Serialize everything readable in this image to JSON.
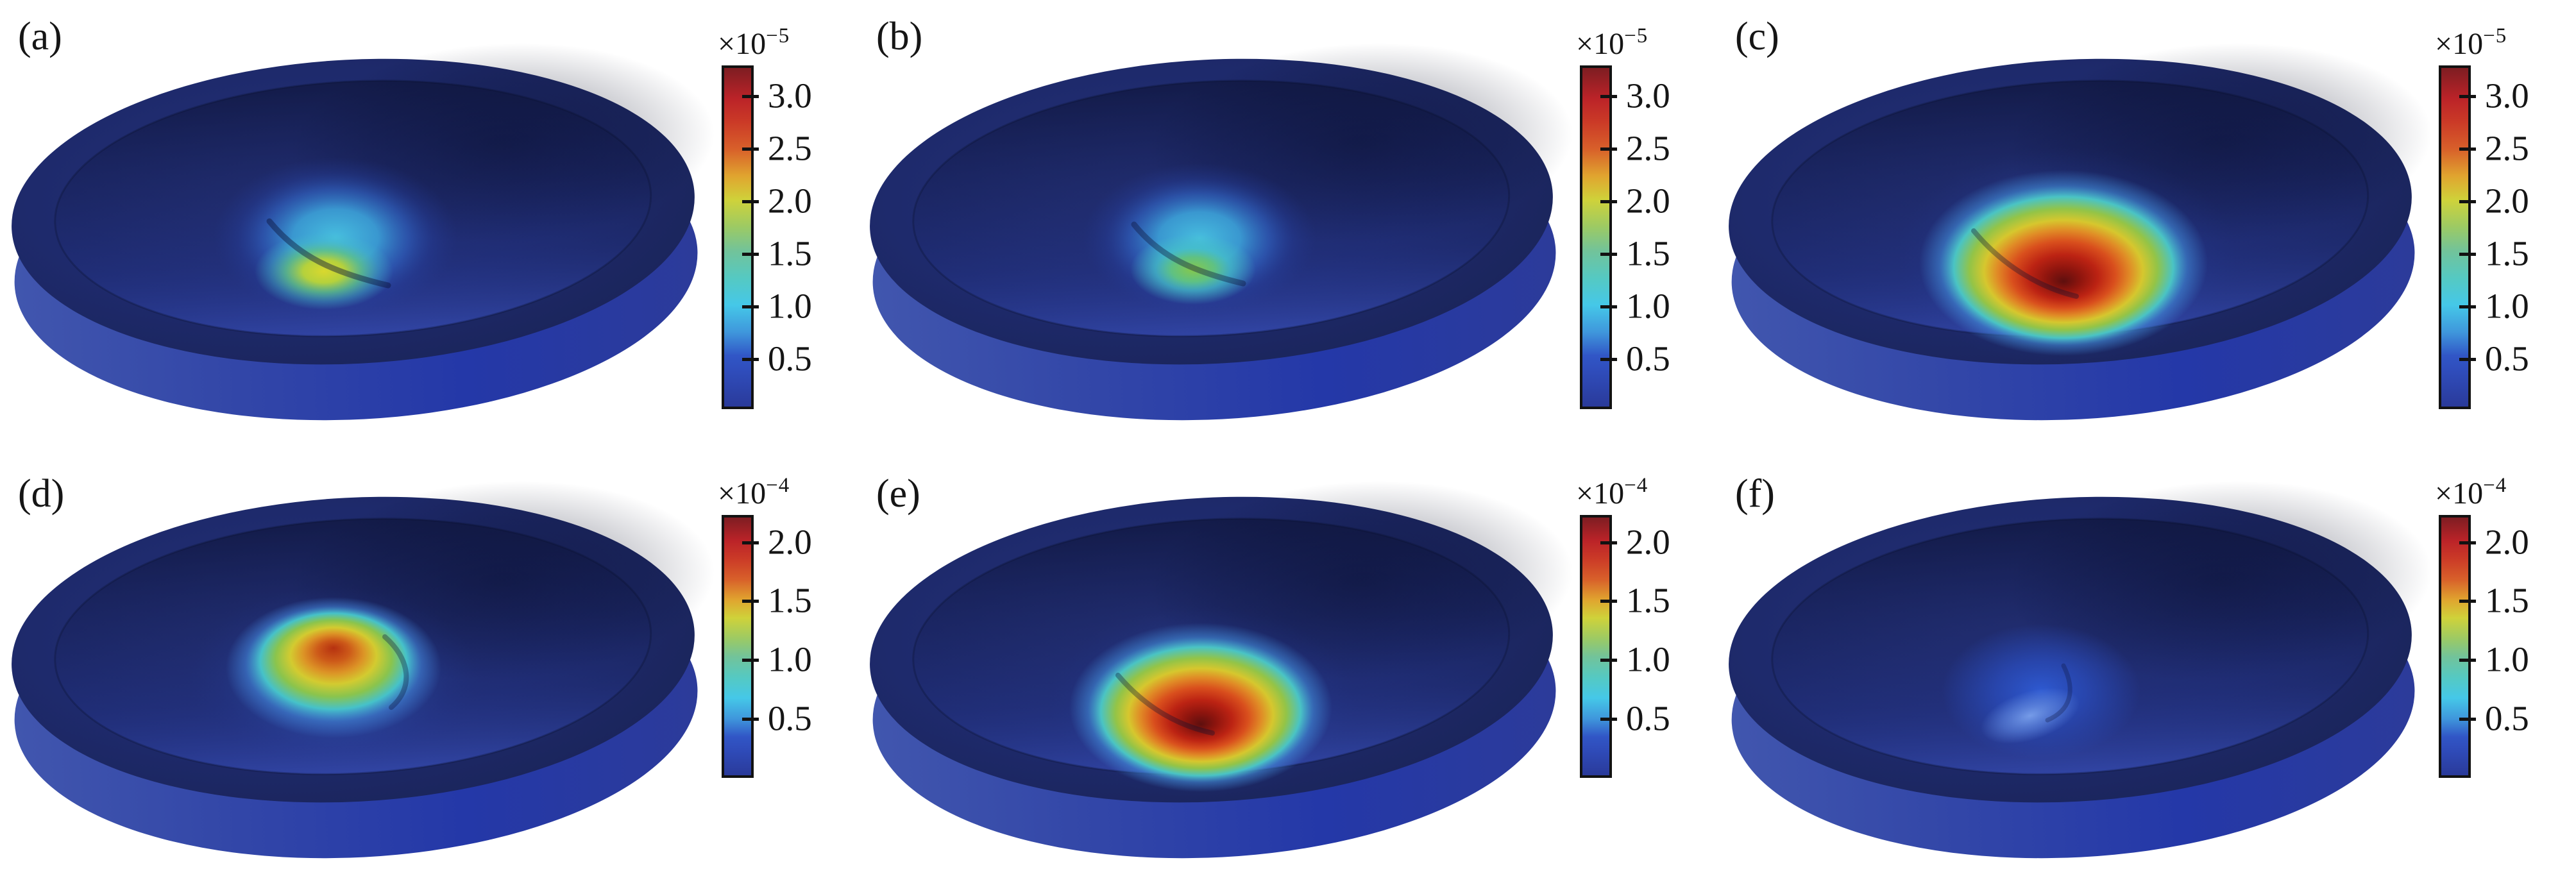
{
  "figure": {
    "background": "#ffffff",
    "description": "Six 3D simulated disk surface plots (2 rows x 3 columns) with rainbow/jet colorbars",
    "accent_colors": {
      "disk_top_face": "#1c2966",
      "disk_side_wall": "#2a3ca8",
      "colormap_low": "#2a3a9a",
      "colormap_mid": "#45c8e8",
      "colormap_high": "#7e1d22"
    }
  },
  "panels": [
    {
      "id": "a",
      "label": "(a)",
      "colorbar": {
        "multiplier": "×10",
        "exponent": "−5",
        "ticks": [
          {
            "label": "3.0",
            "pos": 9.0
          },
          {
            "label": "2.5",
            "pos": 24.3
          },
          {
            "label": "2.0",
            "pos": 39.6
          },
          {
            "label": "1.5",
            "pos": 54.9
          },
          {
            "label": "1.0",
            "pos": 70.1
          },
          {
            "label": "0.5",
            "pos": 85.4
          }
        ]
      }
    },
    {
      "id": "b",
      "label": "(b)",
      "colorbar": {
        "multiplier": "×10",
        "exponent": "−5",
        "ticks": [
          {
            "label": "3.0",
            "pos": 9.0
          },
          {
            "label": "2.5",
            "pos": 24.3
          },
          {
            "label": "2.0",
            "pos": 39.6
          },
          {
            "label": "1.5",
            "pos": 54.9
          },
          {
            "label": "1.0",
            "pos": 70.1
          },
          {
            "label": "0.5",
            "pos": 85.4
          }
        ]
      }
    },
    {
      "id": "c",
      "label": "(c)",
      "colorbar": {
        "multiplier": "×10",
        "exponent": "−5",
        "ticks": [
          {
            "label": "3.0",
            "pos": 9.0
          },
          {
            "label": "2.5",
            "pos": 24.3
          },
          {
            "label": "2.0",
            "pos": 39.6
          },
          {
            "label": "1.5",
            "pos": 54.9
          },
          {
            "label": "1.0",
            "pos": 70.1
          },
          {
            "label": "0.5",
            "pos": 85.4
          }
        ]
      }
    },
    {
      "id": "d",
      "label": "(d)",
      "colorbar": {
        "multiplier": "×10",
        "exponent": "−4",
        "ticks": [
          {
            "label": "2.0",
            "pos": 10.5
          },
          {
            "label": "1.5",
            "pos": 32.7
          },
          {
            "label": "1.0",
            "pos": 55.1
          },
          {
            "label": "0.5",
            "pos": 77.6
          }
        ]
      }
    },
    {
      "id": "e",
      "label": "(e)",
      "colorbar": {
        "multiplier": "×10",
        "exponent": "−4",
        "ticks": [
          {
            "label": "2.0",
            "pos": 10.5
          },
          {
            "label": "1.5",
            "pos": 32.7
          },
          {
            "label": "1.0",
            "pos": 55.1
          },
          {
            "label": "0.5",
            "pos": 77.6
          }
        ]
      }
    },
    {
      "id": "f",
      "label": "(f)",
      "colorbar": {
        "multiplier": "×10",
        "exponent": "−4",
        "ticks": [
          {
            "label": "2.0",
            "pos": 10.5
          },
          {
            "label": "1.5",
            "pos": 32.7
          },
          {
            "label": "1.0",
            "pos": 55.1
          },
          {
            "label": "0.5",
            "pos": 77.6
          }
        ]
      }
    }
  ],
  "chart_data": [
    {
      "panel": "(a)",
      "type": "heatmap",
      "plot_style": "3D disk surface, isometric view",
      "colormap": "jet/rainbow",
      "colorbar": {
        "scale": "×10⁻⁵",
        "tick_values": [
          3.0,
          2.5,
          2.0,
          1.5,
          1.0,
          0.5
        ],
        "range_est": [
          0,
          3.3e-05
        ]
      },
      "hotspot": {
        "location": "lower-left of disk center",
        "peak_value_est": 2e-05,
        "peak_color": "yellow-green",
        "shape": "dimple with cyan halo and dark crease"
      }
    },
    {
      "panel": "(b)",
      "type": "heatmap",
      "plot_style": "3D disk surface, isometric view",
      "colormap": "jet/rainbow",
      "colorbar": {
        "scale": "×10⁻⁵",
        "tick_values": [
          3.0,
          2.5,
          2.0,
          1.5,
          1.0,
          0.5
        ],
        "range_est": [
          0,
          3.3e-05
        ]
      },
      "hotspot": {
        "location": "lower-left of disk center",
        "peak_value_est": 1.7e-05,
        "peak_color": "green",
        "shape": "dimple with cyan halo and dark crease"
      }
    },
    {
      "panel": "(c)",
      "type": "heatmap",
      "plot_style": "3D disk surface, isometric view",
      "colormap": "jet/rainbow",
      "colorbar": {
        "scale": "×10⁻⁵",
        "tick_values": [
          3.0,
          2.5,
          2.0,
          1.5,
          1.0,
          0.5
        ],
        "range_est": [
          0,
          3.3e-05
        ]
      },
      "hotspot": {
        "location": "lower-left of disk center",
        "peak_value_est": 3.2e-05,
        "peak_color": "dark red",
        "shape": "large bullseye: dark red core, orange-yellow ring, cyan halo"
      }
    },
    {
      "panel": "(d)",
      "type": "heatmap",
      "plot_style": "3D disk surface, isometric view",
      "colormap": "jet/rainbow",
      "colorbar": {
        "scale": "×10⁻⁴",
        "tick_values": [
          2.0,
          1.5,
          1.0,
          0.5
        ],
        "range_est": [
          0,
          0.000223
        ]
      },
      "hotspot": {
        "location": "near disk center, raised bump",
        "peak_value_est": 0.00019,
        "peak_color": "orange-red",
        "shape": "dome: red-orange top, yellow-green flank, cyan ring"
      }
    },
    {
      "panel": "(e)",
      "type": "heatmap",
      "plot_style": "3D disk surface, isometric view",
      "colormap": "jet/rainbow",
      "colorbar": {
        "scale": "×10⁻⁴",
        "tick_values": [
          2.0,
          1.5,
          1.0,
          0.5
        ],
        "range_est": [
          0,
          0.000223
        ]
      },
      "hotspot": {
        "location": "lower-left of disk center",
        "peak_value_est": 0.00022,
        "peak_color": "dark red",
        "shape": "bullseye: dark red core, orange-yellow ring, cyan halo"
      }
    },
    {
      "panel": "(f)",
      "type": "heatmap",
      "plot_style": "3D disk surface, isometric view",
      "colormap": "jet/rainbow",
      "colorbar": {
        "scale": "×10⁻⁴",
        "tick_values": [
          2.0,
          1.5,
          1.0,
          0.5
        ],
        "range_est": [
          0,
          0.000223
        ]
      },
      "hotspot": {
        "location": "lower-left of disk center",
        "peak_value_est": 4e-05,
        "peak_color": "light blue",
        "shape": "faint blue glow with small lighter crescent dimple"
      }
    }
  ]
}
